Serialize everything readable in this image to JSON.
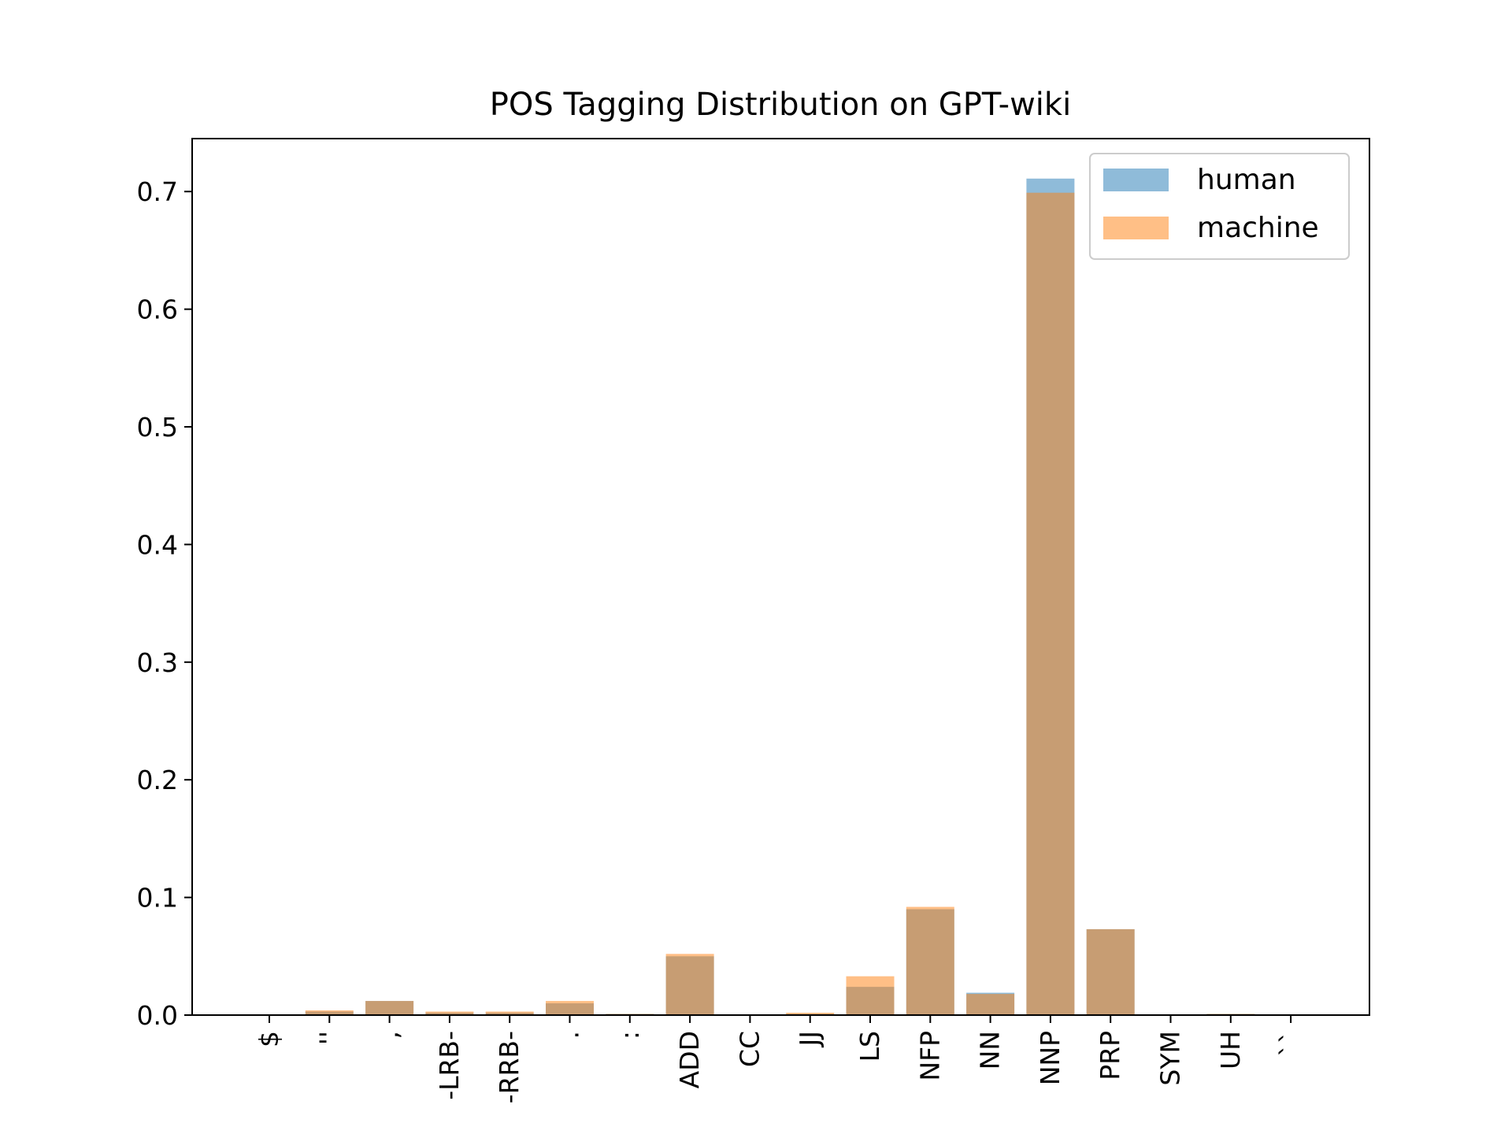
{
  "chart_data": {
    "type": "bar",
    "title": "POS Tagging Distribution on GPT-wiki",
    "xlabel": "",
    "ylabel": "",
    "ylim": [
      0,
      0.745
    ],
    "yticks": [
      "0.0",
      "0.1",
      "0.2",
      "0.3",
      "0.4",
      "0.5",
      "0.6",
      "0.7"
    ],
    "categories": [
      "$",
      "''",
      ",",
      "-LRB-",
      "-RRB-",
      ".",
      ":",
      "ADD",
      "CC",
      "JJ",
      "LS",
      "NFP",
      "NN",
      "NNP",
      "PRP",
      "SYM",
      "UH",
      "``"
    ],
    "series": [
      {
        "name": "human",
        "color": "#1f77b4",
        "values": [
          0.0,
          0.003,
          0.012,
          0.002,
          0.002,
          0.01,
          0.001,
          0.05,
          0.0,
          0.001,
          0.024,
          0.09,
          0.019,
          0.711,
          0.073,
          0.0,
          0.001,
          0.0
        ]
      },
      {
        "name": "machine",
        "color": "#ff7f0e",
        "values": [
          0.0,
          0.004,
          0.012,
          0.003,
          0.003,
          0.012,
          0.001,
          0.052,
          0.0,
          0.002,
          0.033,
          0.092,
          0.018,
          0.699,
          0.073,
          0.0,
          0.001,
          0.0
        ]
      }
    ],
    "bar_alpha": 0.5,
    "legend": {
      "position": "top-right",
      "entries": [
        "human",
        "machine"
      ]
    },
    "grid": false
  }
}
